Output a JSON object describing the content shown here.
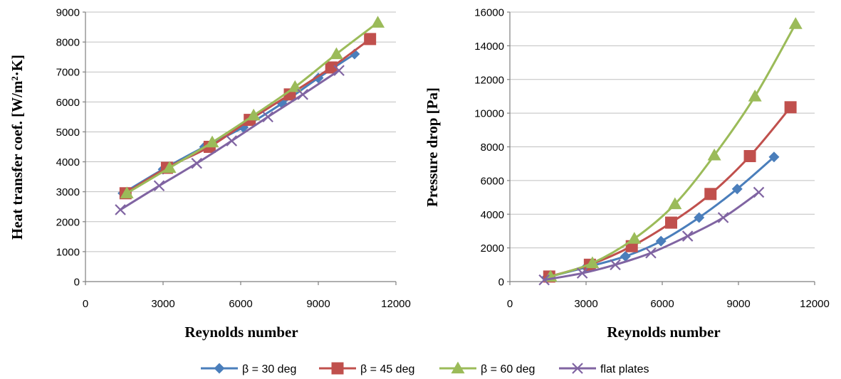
{
  "colors": {
    "s30": "#4a7ebb",
    "s45": "#c0504d",
    "s60": "#9bbb59",
    "flat": "#8064a2"
  },
  "legend": {
    "items": [
      {
        "label": "β = 30 deg",
        "marker": "diamond",
        "color": "#4a7ebb"
      },
      {
        "label": "β = 45 deg",
        "marker": "square",
        "color": "#c0504d"
      },
      {
        "label": "β = 60 deg",
        "marker": "triangle",
        "color": "#9bbb59"
      },
      {
        "label": "flat plates",
        "marker": "x",
        "color": "#8064a2"
      }
    ]
  },
  "chart_data": [
    {
      "type": "line",
      "xlabel": "Reynolds number",
      "ylabel": "Heat transfer coef. [W/m²·K]",
      "xlim": [
        0,
        12000
      ],
      "ylim": [
        0,
        9000
      ],
      "xticks": [
        0,
        3000,
        6000,
        9000,
        12000
      ],
      "yticks": [
        0,
        1000,
        2000,
        3000,
        4000,
        5000,
        6000,
        7000,
        8000,
        9000
      ],
      "grid": "horizontal",
      "series": [
        {
          "name": "β = 30 deg",
          "marker": "diamond",
          "color": "#4a7ebb",
          "x": [
            1450,
            3000,
            4600,
            6100,
            7600,
            9000,
            10400
          ],
          "y": [
            2950,
            3750,
            4500,
            5150,
            5950,
            6800,
            7600
          ]
        },
        {
          "name": "β = 45 deg",
          "marker": "square",
          "color": "#c0504d",
          "x": [
            1550,
            3150,
            4800,
            6350,
            7900,
            9500,
            11000
          ],
          "y": [
            2950,
            3800,
            4500,
            5400,
            6250,
            7150,
            8100
          ]
        },
        {
          "name": "β = 60 deg",
          "marker": "triangle",
          "color": "#9bbb59",
          "x": [
            1600,
            3250,
            4900,
            6500,
            8100,
            9700,
            11300
          ],
          "y": [
            2950,
            3800,
            4650,
            5550,
            6500,
            7600,
            8650
          ]
        },
        {
          "name": "flat plates",
          "marker": "x",
          "color": "#8064a2",
          "x": [
            1350,
            2850,
            4300,
            5650,
            7050,
            8400,
            9800
          ],
          "y": [
            2400,
            3200,
            3950,
            4700,
            5500,
            6250,
            7050
          ]
        }
      ]
    },
    {
      "type": "line",
      "xlabel": "Reynolds number",
      "ylabel": "Pressure drop [Pa]",
      "xlim": [
        0,
        12000
      ],
      "ylim": [
        0,
        16000
      ],
      "xticks": [
        0,
        3000,
        6000,
        9000,
        12000
      ],
      "yticks": [
        0,
        2000,
        4000,
        6000,
        8000,
        10000,
        12000,
        14000,
        16000
      ],
      "grid": "horizontal",
      "series": [
        {
          "name": "β = 30 deg",
          "marker": "diamond",
          "color": "#4a7ebb",
          "x": [
            1450,
            3000,
            4550,
            5950,
            7450,
            8950,
            10400
          ],
          "y": [
            250,
            850,
            1500,
            2400,
            3800,
            5500,
            7400
          ]
        },
        {
          "name": "β = 45 deg",
          "marker": "square",
          "color": "#c0504d",
          "x": [
            1550,
            3150,
            4800,
            6350,
            7900,
            9450,
            11050
          ],
          "y": [
            300,
            1000,
            2100,
            3500,
            5200,
            7450,
            10350
          ]
        },
        {
          "name": "β = 60 deg",
          "marker": "triangle",
          "color": "#9bbb59",
          "x": [
            1600,
            3250,
            4900,
            6500,
            8050,
            9650,
            11250
          ],
          "y": [
            300,
            1100,
            2550,
            4600,
            7500,
            11000,
            15300
          ]
        },
        {
          "name": "flat plates",
          "marker": "x",
          "color": "#8064a2",
          "x": [
            1350,
            2850,
            4150,
            5550,
            7000,
            8400,
            9800
          ],
          "y": [
            100,
            500,
            1000,
            1700,
            2700,
            3800,
            5300
          ]
        }
      ]
    }
  ]
}
